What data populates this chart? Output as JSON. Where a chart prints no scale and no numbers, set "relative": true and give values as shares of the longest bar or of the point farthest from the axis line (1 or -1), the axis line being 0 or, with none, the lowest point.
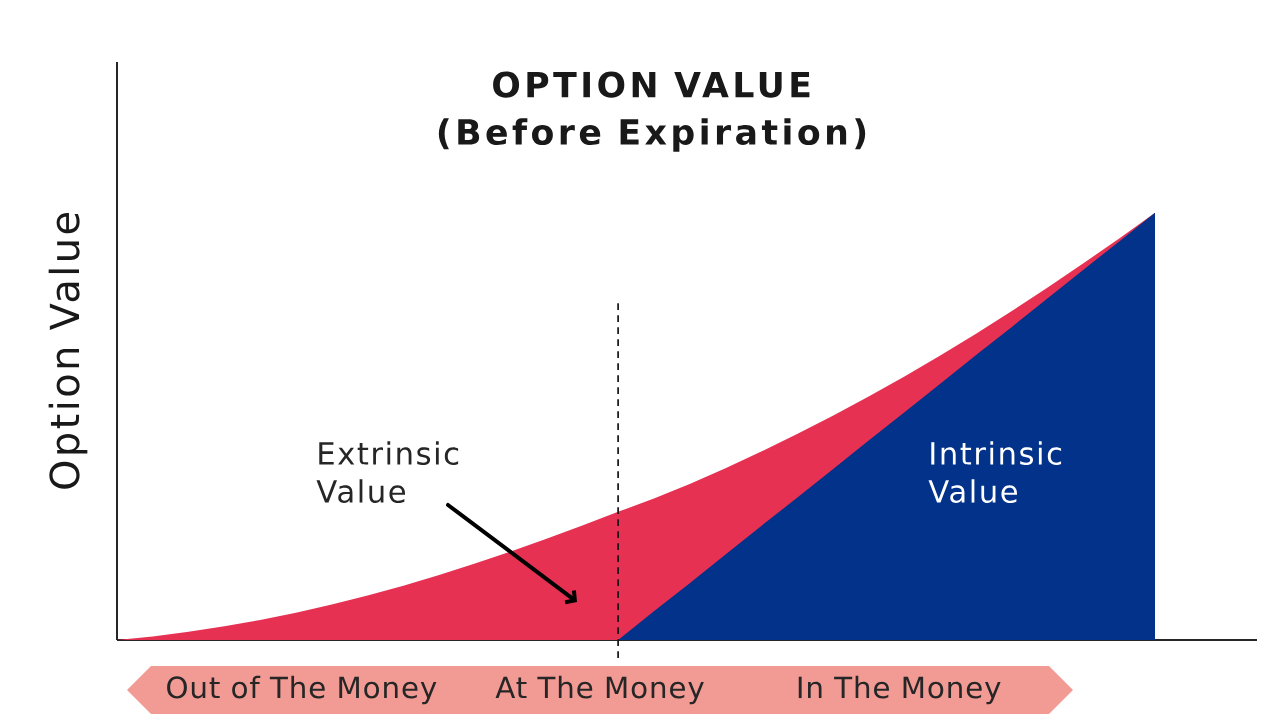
{
  "chart_data": {
    "type": "area",
    "title": "OPTION VALUE",
    "subtitle": "(Before Expiration)",
    "ylabel": "Option Value",
    "categories": [
      null,
      null,
      null,
      null,
      null,
      null,
      null,
      null,
      null,
      null,
      null,
      null,
      null,
      null,
      null,
      null,
      null,
      null,
      null,
      null,
      null,
      null,
      null,
      null,
      null,
      null,
      null,
      null,
      null,
      null
    ],
    "relative": true,
    "stacked": true,
    "series": [
      {
        "name": "Intrinsic Value",
        "color": "#023289",
        "values": [
          null,
          null,
          null,
          null,
          null,
          null,
          null,
          null,
          null,
          null,
          null,
          null,
          null,
          null,
          0,
          0.067,
          0.133,
          0.2,
          0.267,
          0.333,
          0.4,
          0.467,
          0.533,
          0.6,
          0.667,
          0.733,
          0.8,
          0.867,
          0.933,
          1
        ]
      },
      {
        "name": "Extrinsic Value",
        "color": "#e73153",
        "values": [
          0,
          0.008,
          0.019,
          0.032,
          0.047,
          0.064,
          0.083,
          0.104,
          0.127,
          0.152,
          0.179,
          0.207,
          0.237,
          0.268,
          0.3,
          0.264,
          0.232,
          0.202,
          0.174,
          0.149,
          0.125,
          0.103,
          0.084,
          0.066,
          0.05,
          0.037,
          0.025,
          0.015,
          0.007,
          0
        ]
      }
    ],
    "annotations": [
      "Out of The Money",
      "At The Money",
      "In The Money"
    ]
  }
}
